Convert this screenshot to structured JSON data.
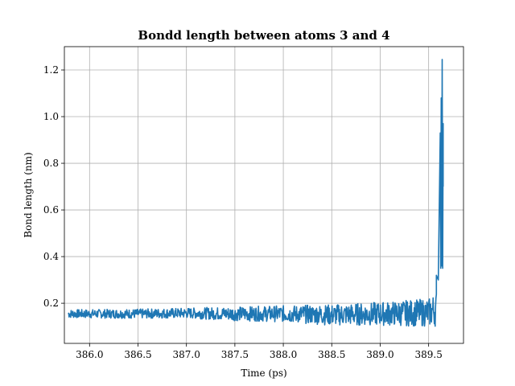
{
  "chart_data": {
    "type": "line",
    "title": "Bondd length between atoms 3 and 4",
    "xlabel": "Time (ps)",
    "ylabel": "Bond length (nm)",
    "xlim": [
      385.74,
      389.86
    ],
    "ylim": [
      0.028,
      1.3
    ],
    "xticks": [
      386.0,
      386.5,
      387.0,
      387.5,
      388.0,
      388.5,
      389.0,
      389.5
    ],
    "xtick_labels": [
      "386.0",
      "386.5",
      "387.0",
      "387.5",
      "388.0",
      "388.5",
      "389.0",
      "389.5"
    ],
    "yticks": [
      0.2,
      0.4,
      0.6,
      0.8,
      1.0,
      1.2
    ],
    "ytick_labels": [
      "0.2",
      "0.4",
      "0.6",
      "0.8",
      "1.0",
      "1.2"
    ],
    "grid": true,
    "line_color": "#1f77b4",
    "series": [
      {
        "x_start": 385.78,
        "x_end": 389.65,
        "baseline": [
          [
            385.78,
            0.155
          ],
          [
            386.5,
            0.155
          ],
          [
            387.0,
            0.158
          ],
          [
            387.5,
            0.155
          ],
          [
            388.0,
            0.155
          ],
          [
            388.5,
            0.15
          ],
          [
            389.0,
            0.155
          ],
          [
            389.5,
            0.16
          ],
          [
            389.6,
            0.18
          ]
        ],
        "amplitude": [
          [
            385.78,
            0.018
          ],
          [
            387.0,
            0.022
          ],
          [
            387.5,
            0.03
          ],
          [
            388.0,
            0.035
          ],
          [
            388.5,
            0.045
          ],
          [
            389.0,
            0.05
          ],
          [
            389.5,
            0.06
          ],
          [
            389.6,
            0.08
          ]
        ],
        "spike": [
          [
            389.58,
            0.32
          ],
          [
            389.6,
            0.3
          ],
          [
            389.62,
            0.93
          ],
          [
            389.625,
            0.35
          ],
          [
            389.63,
            1.08
          ],
          [
            389.635,
            0.36
          ],
          [
            389.64,
            1.245
          ],
          [
            389.645,
            0.35
          ],
          [
            389.65,
            0.97
          ],
          [
            389.65,
            0.7
          ]
        ]
      }
    ]
  }
}
